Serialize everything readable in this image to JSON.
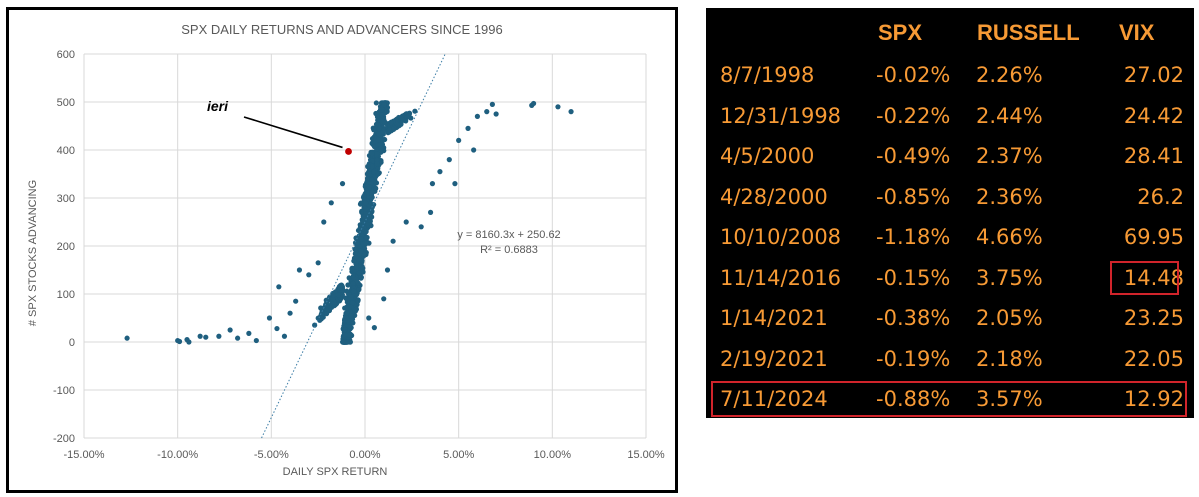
{
  "chart_data": {
    "type": "scatter",
    "title": "SPX DAILY RETURNS AND ADVANCERS SINCE 1996",
    "xlabel": "DAILY SPX RETURN",
    "ylabel": "# SPX STOCKS ADVANCING",
    "xlim": [
      -0.15,
      0.15
    ],
    "ylim": [
      -200,
      600
    ],
    "x_ticks": [
      "-15.00%",
      "-10.00%",
      "-5.00%",
      "0.00%",
      "5.00%",
      "10.00%",
      "15.00%"
    ],
    "y_ticks": [
      "-200",
      "-100",
      "0",
      "100",
      "200",
      "300",
      "400",
      "500",
      "600"
    ],
    "grid": true,
    "point_color": "#1f5f7f",
    "highlight_color": "#c00000",
    "trendline": {
      "equation": "y = 8160.3x + 250.62",
      "r2": "R² = 0.6883",
      "slope": 8160.3,
      "intercept": 250.62
    },
    "annotation": {
      "label": "ieri",
      "x": -0.0088,
      "y": 397
    },
    "outliers": [
      {
        "x": -0.127,
        "y": 8
      },
      {
        "x": -0.1,
        "y": 3
      },
      {
        "x": -0.099,
        "y": 1
      },
      {
        "x": -0.095,
        "y": 5
      },
      {
        "x": -0.094,
        "y": 0
      },
      {
        "x": -0.088,
        "y": 12
      },
      {
        "x": -0.085,
        "y": 10
      },
      {
        "x": -0.078,
        "y": 12
      },
      {
        "x": -0.072,
        "y": 25
      },
      {
        "x": -0.068,
        "y": 8
      },
      {
        "x": -0.062,
        "y": 18
      },
      {
        "x": -0.058,
        "y": 3
      },
      {
        "x": -0.051,
        "y": 50
      },
      {
        "x": -0.047,
        "y": 28
      },
      {
        "x": -0.046,
        "y": 115
      },
      {
        "x": -0.043,
        "y": 12
      },
      {
        "x": -0.04,
        "y": 60
      },
      {
        "x": -0.037,
        "y": 85
      },
      {
        "x": -0.035,
        "y": 150
      },
      {
        "x": -0.03,
        "y": 140
      },
      {
        "x": -0.025,
        "y": 165
      },
      {
        "x": -0.022,
        "y": 250
      },
      {
        "x": -0.018,
        "y": 290
      },
      {
        "x": -0.012,
        "y": 330
      },
      {
        "x": 0.002,
        "y": 50
      },
      {
        "x": 0.005,
        "y": 30
      },
      {
        "x": 0.01,
        "y": 90
      },
      {
        "x": 0.012,
        "y": 150
      },
      {
        "x": 0.015,
        "y": 210
      },
      {
        "x": 0.022,
        "y": 250
      },
      {
        "x": 0.03,
        "y": 240
      },
      {
        "x": 0.035,
        "y": 270
      },
      {
        "x": 0.036,
        "y": 330
      },
      {
        "x": 0.04,
        "y": 355
      },
      {
        "x": 0.045,
        "y": 380
      },
      {
        "x": 0.048,
        "y": 330
      },
      {
        "x": 0.05,
        "y": 420
      },
      {
        "x": 0.055,
        "y": 445
      },
      {
        "x": 0.058,
        "y": 400
      },
      {
        "x": 0.06,
        "y": 470
      },
      {
        "x": 0.065,
        "y": 480
      },
      {
        "x": 0.068,
        "y": 495
      },
      {
        "x": 0.07,
        "y": 475
      },
      {
        "x": 0.089,
        "y": 493
      },
      {
        "x": 0.09,
        "y": 497
      },
      {
        "x": 0.103,
        "y": 490
      },
      {
        "x": 0.11,
        "y": 480
      }
    ]
  },
  "table": {
    "columns": [
      "SPX",
      "RUSSELL",
      "VIX"
    ],
    "rows": [
      {
        "date": "8/7/1998",
        "spx": "-0.02%",
        "russell": "2.26%",
        "vix": "27.02"
      },
      {
        "date": "12/31/1998",
        "spx": "-0.22%",
        "russell": "2.44%",
        "vix": "24.42"
      },
      {
        "date": "4/5/2000",
        "spx": "-0.49%",
        "russell": "2.37%",
        "vix": "28.41"
      },
      {
        "date": "4/28/2000",
        "spx": "-0.85%",
        "russell": "2.36%",
        "vix": "26.2"
      },
      {
        "date": "10/10/2008",
        "spx": "-1.18%",
        "russell": "4.66%",
        "vix": "69.95"
      },
      {
        "date": "11/14/2016",
        "spx": "-0.15%",
        "russell": "3.75%",
        "vix": "14.48"
      },
      {
        "date": "1/14/2021",
        "spx": "-0.38%",
        "russell": "2.05%",
        "vix": "23.25"
      },
      {
        "date": "2/19/2021",
        "spx": "-0.19%",
        "russell": "2.18%",
        "vix": "22.05"
      },
      {
        "date": "7/11/2024",
        "spx": "-0.88%",
        "russell": "3.57%",
        "vix": "12.92"
      }
    ],
    "text_color": "#f79a35",
    "highlight_color": "#d1242b"
  }
}
